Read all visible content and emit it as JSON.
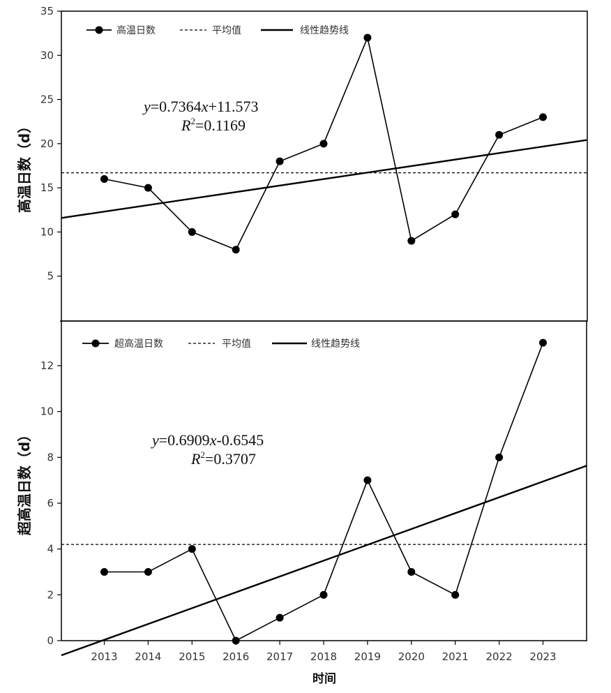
{
  "chart_data": [
    {
      "type": "line",
      "ylabel": "高温日数（d）",
      "ylim": [
        0,
        35
      ],
      "yticks": [
        5,
        10,
        15,
        20,
        25,
        30,
        35
      ],
      "x": [
        2013,
        2014,
        2015,
        2016,
        2017,
        2018,
        2019,
        2020,
        2021,
        2022,
        2023
      ],
      "series": [
        {
          "name": "高温日数",
          "values": [
            16,
            15,
            10,
            8,
            18,
            20,
            32,
            9,
            12,
            21,
            23
          ]
        }
      ],
      "mean": {
        "name": "平均值",
        "value": 16.7
      },
      "trend": {
        "name": "线性趋势线",
        "slope": 0.7364,
        "intercept": 11.573,
        "x0": 2012
      },
      "equation": {
        "y_label": "y",
        "formula": "=0.7364",
        "x_label": "x",
        "formula_tail": "+11.573",
        "r_label": "R",
        "r_exp": "2",
        "r_value": "=0.1169"
      },
      "legend_position": "top-left"
    },
    {
      "type": "line",
      "ylabel": "超高温日数（d）",
      "ylim": [
        0,
        13.5
      ],
      "yticks": [
        0,
        2,
        4,
        6,
        8,
        10,
        12
      ],
      "x": [
        2013,
        2014,
        2015,
        2016,
        2017,
        2018,
        2019,
        2020,
        2021,
        2022,
        2023
      ],
      "series": [
        {
          "name": "超高温日数",
          "values": [
            3,
            3,
            4,
            0,
            1,
            2,
            7,
            3,
            2,
            8,
            13
          ]
        }
      ],
      "mean": {
        "name": "平均值",
        "value": 4.2
      },
      "trend": {
        "name": "线性趋势线",
        "slope": 0.6909,
        "intercept": -0.6545,
        "x0": 2012
      },
      "equation": {
        "y_label": "y",
        "formula": "=0.6909",
        "x_label": "x",
        "formula_tail": "-0.6545",
        "r_label": "R",
        "r_exp": "2",
        "r_value": "=0.3707"
      },
      "legend_position": "top-left"
    }
  ],
  "xaxis": {
    "label": "时间",
    "ticks": [
      "2013",
      "2014",
      "2015",
      "2016",
      "2017",
      "2018",
      "2019",
      "2020",
      "2021",
      "2022",
      "2023"
    ]
  }
}
